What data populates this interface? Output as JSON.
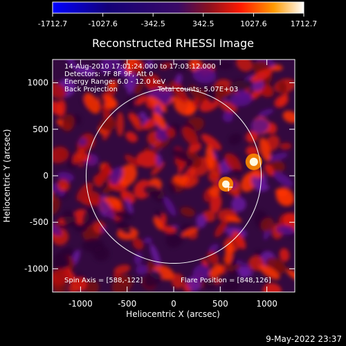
{
  "figure": {
    "background": "#000000",
    "foreground": "#ffffff",
    "footer_date": "9-May-2022 23:37"
  },
  "colorbar": {
    "colormap": "blue-black-purple-red-yellow-white",
    "range": [
      -1712.7,
      1712.7
    ],
    "tick_labels": [
      "-1712.7",
      "-1027.6",
      "-342.5",
      "342.5",
      "1027.6",
      "1712.7"
    ],
    "tick_values": [
      -1712.7,
      -1027.6,
      -342.5,
      342.5,
      1027.6,
      1712.7
    ]
  },
  "chart_data": {
    "type": "heatmap",
    "title": "Reconstructed RHESSI Image",
    "xlabel": "Heliocentric X (arcsec)",
    "ylabel": "Heliocentric Y (arcsec)",
    "xlim": [
      -1300,
      1300
    ],
    "ylim": [
      -1250,
      1250
    ],
    "x_ticks": [
      -1000,
      -500,
      0,
      500,
      1000
    ],
    "y_ticks": [
      -1000,
      -500,
      0,
      500,
      1000
    ],
    "x_tick_labels": [
      "-1000",
      "-500",
      "0",
      "500",
      "1000"
    ],
    "y_tick_labels": [
      "-1000",
      "-500",
      "0",
      "500",
      "1000"
    ],
    "grid": false,
    "annotations": [
      "14-Aug-2010 17:01:24.000 to 17:03:12.000",
      "Detectors: 7F 8F 9F, Att 0",
      "Energy Range: 6.0 - 12.0 keV",
      "Back Projection",
      "Total counts: 5.07E+03"
    ],
    "spin_axis_label": "Spin Axis = [588,-122]",
    "flare_position_label": "Flare Position = [848,126]",
    "spin_axis": [
      588,
      -122
    ],
    "flare_position": [
      848,
      126
    ],
    "solar_limb": {
      "center": [
        0,
        0
      ],
      "radius": 940
    },
    "bright_sources": [
      {
        "x": 860,
        "y": 150,
        "value": 1712.7
      },
      {
        "x": 560,
        "y": -90,
        "value": 1500
      }
    ]
  }
}
